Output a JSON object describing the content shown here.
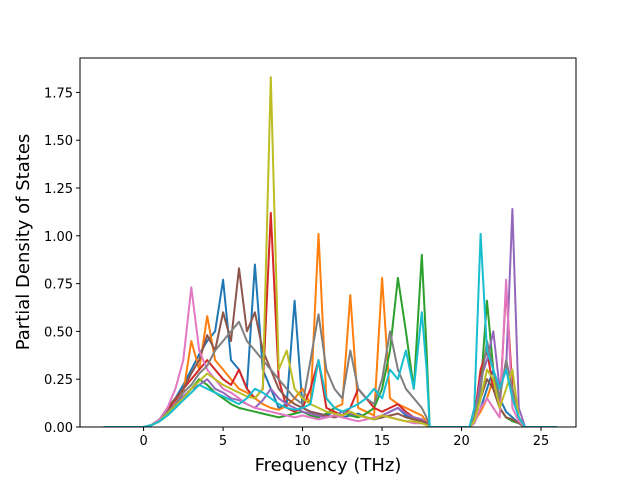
{
  "chart_data": {
    "type": "line",
    "title": "",
    "xlabel": "Frequency (THz)",
    "ylabel": "Partial Density of States",
    "xlim": [
      -4,
      27.2
    ],
    "ylim": [
      0,
      1.93
    ],
    "xticks": [
      0,
      5,
      10,
      15,
      20,
      25
    ],
    "xtick_labels": [
      "0",
      "5",
      "10",
      "15",
      "20",
      "25"
    ],
    "yticks": [
      0,
      0.25,
      0.5,
      0.75,
      1.0,
      1.25,
      1.5,
      1.75
    ],
    "ytick_labels": [
      "0.00",
      "0.25",
      "0.50",
      "0.75",
      "1.00",
      "1.25",
      "1.50",
      "1.75"
    ],
    "grid": false,
    "legend": "none",
    "x": [
      -2.5,
      0,
      0.5,
      1.0,
      1.5,
      2.0,
      2.5,
      3.0,
      3.5,
      4.0,
      4.5,
      5.0,
      5.5,
      6.0,
      6.5,
      7.0,
      7.5,
      8.0,
      8.5,
      9.0,
      9.5,
      10.0,
      10.5,
      11.0,
      11.5,
      12.0,
      12.5,
      13.0,
      13.5,
      14.0,
      14.5,
      15.0,
      15.5,
      16.0,
      16.5,
      17.0,
      17.5,
      17.8,
      18.0,
      20.5,
      20.8,
      21.2,
      21.6,
      22.0,
      22.4,
      22.8,
      23.2,
      23.6,
      24.0,
      26.0
    ],
    "series": [
      {
        "color": "#1f77b4",
        "values": [
          0,
          0,
          0.01,
          0.04,
          0.08,
          0.15,
          0.22,
          0.3,
          0.38,
          0.45,
          0.5,
          0.77,
          0.35,
          0.3,
          0.2,
          0.85,
          0.3,
          0.2,
          0.1,
          0.12,
          0.66,
          0.1,
          0.08,
          0.07,
          0.06,
          0.08,
          0.05,
          0.06,
          0.07,
          0.05,
          0.04,
          0.06,
          0.08,
          0.1,
          0.06,
          0.04,
          0.03,
          0.02,
          0,
          0,
          0.02,
          0.1,
          0.2,
          0.3,
          0.15,
          0.08,
          0.05,
          0.02,
          0,
          0
        ]
      },
      {
        "color": "#ff7f0e",
        "values": [
          0,
          0,
          0.01,
          0.03,
          0.07,
          0.12,
          0.18,
          0.45,
          0.3,
          0.58,
          0.35,
          0.3,
          0.25,
          0.2,
          0.18,
          0.15,
          0.12,
          0.1,
          0.09,
          0.11,
          0.15,
          0.2,
          0.12,
          1.01,
          0.15,
          0.1,
          0.12,
          0.69,
          0.1,
          0.08,
          0.06,
          0.78,
          0.15,
          0.12,
          0.1,
          0.08,
          0.06,
          0.03,
          0,
          0,
          0.03,
          0.08,
          0.15,
          0.25,
          0.1,
          0.05,
          0.04,
          0.02,
          0,
          0
        ]
      },
      {
        "color": "#2ca02c",
        "values": [
          0,
          0,
          0.01,
          0.03,
          0.06,
          0.1,
          0.15,
          0.2,
          0.25,
          0.22,
          0.18,
          0.15,
          0.12,
          0.1,
          0.09,
          0.08,
          0.07,
          0.06,
          0.05,
          0.06,
          0.07,
          0.08,
          0.06,
          0.05,
          0.07,
          0.1,
          0.08,
          0.06,
          0.05,
          0.07,
          0.1,
          0.2,
          0.4,
          0.78,
          0.5,
          0.2,
          0.9,
          0.4,
          0,
          0,
          0.05,
          0.2,
          0.66,
          0.3,
          0.1,
          0.05,
          0.03,
          0.02,
          0,
          0
        ]
      },
      {
        "color": "#d62728",
        "values": [
          0,
          0,
          0.01,
          0.04,
          0.09,
          0.14,
          0.2,
          0.25,
          0.3,
          0.35,
          0.3,
          0.25,
          0.22,
          0.3,
          0.2,
          0.15,
          0.2,
          1.12,
          0.25,
          0.1,
          0.08,
          0.1,
          0.2,
          0.35,
          0.1,
          0.08,
          0.06,
          0.1,
          0.2,
          0.15,
          0.1,
          0.08,
          0.1,
          0.12,
          0.08,
          0.05,
          0.04,
          0.02,
          0,
          0,
          0.05,
          0.3,
          0.4,
          0.2,
          0.1,
          0.73,
          0.2,
          0.05,
          0,
          0
        ]
      },
      {
        "color": "#9467bd",
        "values": [
          0,
          0,
          0.01,
          0.03,
          0.07,
          0.12,
          0.16,
          0.2,
          0.22,
          0.25,
          0.2,
          0.18,
          0.15,
          0.14,
          0.12,
          0.1,
          0.14,
          0.2,
          0.15,
          0.12,
          0.1,
          0.08,
          0.07,
          0.06,
          0.05,
          0.06,
          0.08,
          0.07,
          0.06,
          0.05,
          0.04,
          0.06,
          0.08,
          0.1,
          0.07,
          0.05,
          0.04,
          0.02,
          0,
          0,
          0.04,
          0.25,
          0.35,
          0.5,
          0.2,
          0.3,
          1.14,
          0.1,
          0,
          0
        ]
      },
      {
        "color": "#8c564b",
        "values": [
          0,
          0,
          0.01,
          0.04,
          0.1,
          0.15,
          0.2,
          0.28,
          0.35,
          0.48,
          0.4,
          0.6,
          0.45,
          0.83,
          0.5,
          0.6,
          0.4,
          0.3,
          0.2,
          0.15,
          0.12,
          0.1,
          0.08,
          0.07,
          0.06,
          0.05,
          0.06,
          0.08,
          0.06,
          0.05,
          0.04,
          0.05,
          0.06,
          0.07,
          0.05,
          0.04,
          0.03,
          0.02,
          0,
          0,
          0.03,
          0.15,
          0.25,
          0.2,
          0.1,
          0.05,
          0.04,
          0.02,
          0,
          0
        ]
      },
      {
        "color": "#e377c2",
        "values": [
          0,
          0,
          0.01,
          0.04,
          0.1,
          0.2,
          0.35,
          0.73,
          0.4,
          0.3,
          0.25,
          0.2,
          0.18,
          0.15,
          0.12,
          0.1,
          0.09,
          0.08,
          0.07,
          0.06,
          0.05,
          0.06,
          0.05,
          0.04,
          0.05,
          0.06,
          0.05,
          0.04,
          0.03,
          0.04,
          0.05,
          0.06,
          0.05,
          0.04,
          0.03,
          0.02,
          0.02,
          0.01,
          0,
          0,
          0.02,
          0.1,
          0.15,
          0.1,
          0.05,
          0.77,
          0.1,
          0.03,
          0,
          0
        ]
      },
      {
        "color": "#7f7f7f",
        "values": [
          0,
          0,
          0.01,
          0.03,
          0.08,
          0.12,
          0.18,
          0.22,
          0.28,
          0.32,
          0.4,
          0.45,
          0.5,
          0.55,
          0.45,
          0.4,
          0.35,
          0.3,
          0.25,
          0.2,
          0.15,
          0.12,
          0.35,
          0.59,
          0.3,
          0.2,
          0.15,
          0.4,
          0.2,
          0.15,
          0.12,
          0.25,
          0.5,
          0.3,
          0.2,
          0.15,
          0.1,
          0.05,
          0,
          0,
          0.05,
          0.2,
          0.45,
          0.3,
          0.15,
          0.35,
          0.2,
          0.05,
          0,
          0
        ]
      },
      {
        "color": "#bcbd22",
        "values": [
          0,
          0,
          0.01,
          0.03,
          0.07,
          0.11,
          0.15,
          0.2,
          0.24,
          0.28,
          0.25,
          0.22,
          0.2,
          0.18,
          0.16,
          0.15,
          0.2,
          1.83,
          0.3,
          0.4,
          0.2,
          0.15,
          0.12,
          0.1,
          0.08,
          0.07,
          0.06,
          0.08,
          0.06,
          0.05,
          0.04,
          0.06,
          0.05,
          0.04,
          0.03,
          0.03,
          0.02,
          0.01,
          0,
          0,
          0.03,
          0.15,
          0.3,
          0.25,
          0.1,
          0.2,
          0.3,
          0.05,
          0,
          0
        ]
      },
      {
        "color": "#17becf",
        "values": [
          0,
          0,
          0.01,
          0.03,
          0.06,
          0.1,
          0.14,
          0.18,
          0.22,
          0.2,
          0.18,
          0.16,
          0.14,
          0.12,
          0.15,
          0.2,
          0.18,
          0.15,
          0.12,
          0.1,
          0.09,
          0.1,
          0.12,
          0.35,
          0.15,
          0.1,
          0.08,
          0.1,
          0.12,
          0.15,
          0.2,
          0.15,
          0.3,
          0.25,
          0.4,
          0.2,
          0.6,
          0.3,
          0,
          0,
          0.1,
          1.01,
          0.4,
          0.3,
          0.2,
          0.3,
          0.15,
          0.05,
          0,
          0
        ]
      }
    ]
  }
}
